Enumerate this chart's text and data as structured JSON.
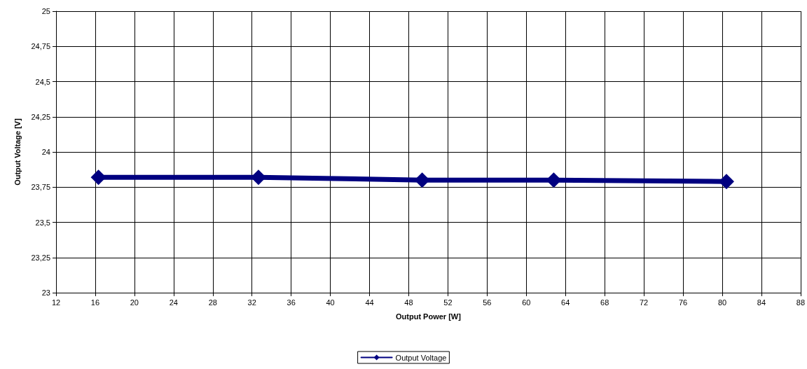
{
  "chart_data": {
    "type": "line",
    "xlabel": "Output Power [W]",
    "ylabel": "Output Voltage [V]",
    "x": [
      16.33,
      32.66,
      49.37,
      62.8,
      80.43
    ],
    "series": [
      {
        "name": "Output Voltage",
        "color": "#000080",
        "values": [
          23.82,
          23.82,
          23.8,
          23.8,
          23.79
        ]
      }
    ],
    "xlim": [
      12,
      88
    ],
    "xticks": [
      12,
      16,
      20,
      24,
      28,
      32,
      36,
      40,
      44,
      48,
      52,
      56,
      60,
      64,
      68,
      72,
      76,
      80,
      84,
      88
    ],
    "ylim": [
      23,
      25
    ],
    "yticks": [
      23,
      {
        "value": 23.25,
        "label": "23,25"
      },
      {
        "value": 23.5,
        "label": "23,5"
      },
      {
        "value": 23.75,
        "label": "23,75"
      },
      24,
      {
        "value": 24.25,
        "label": "24,25"
      },
      {
        "value": 24.5,
        "label": "24,5"
      },
      {
        "value": 24.75,
        "label": "24,75"
      },
      25
    ],
    "grid": true,
    "legend": "bottom",
    "marker": "diamond",
    "line_style": "solid"
  }
}
